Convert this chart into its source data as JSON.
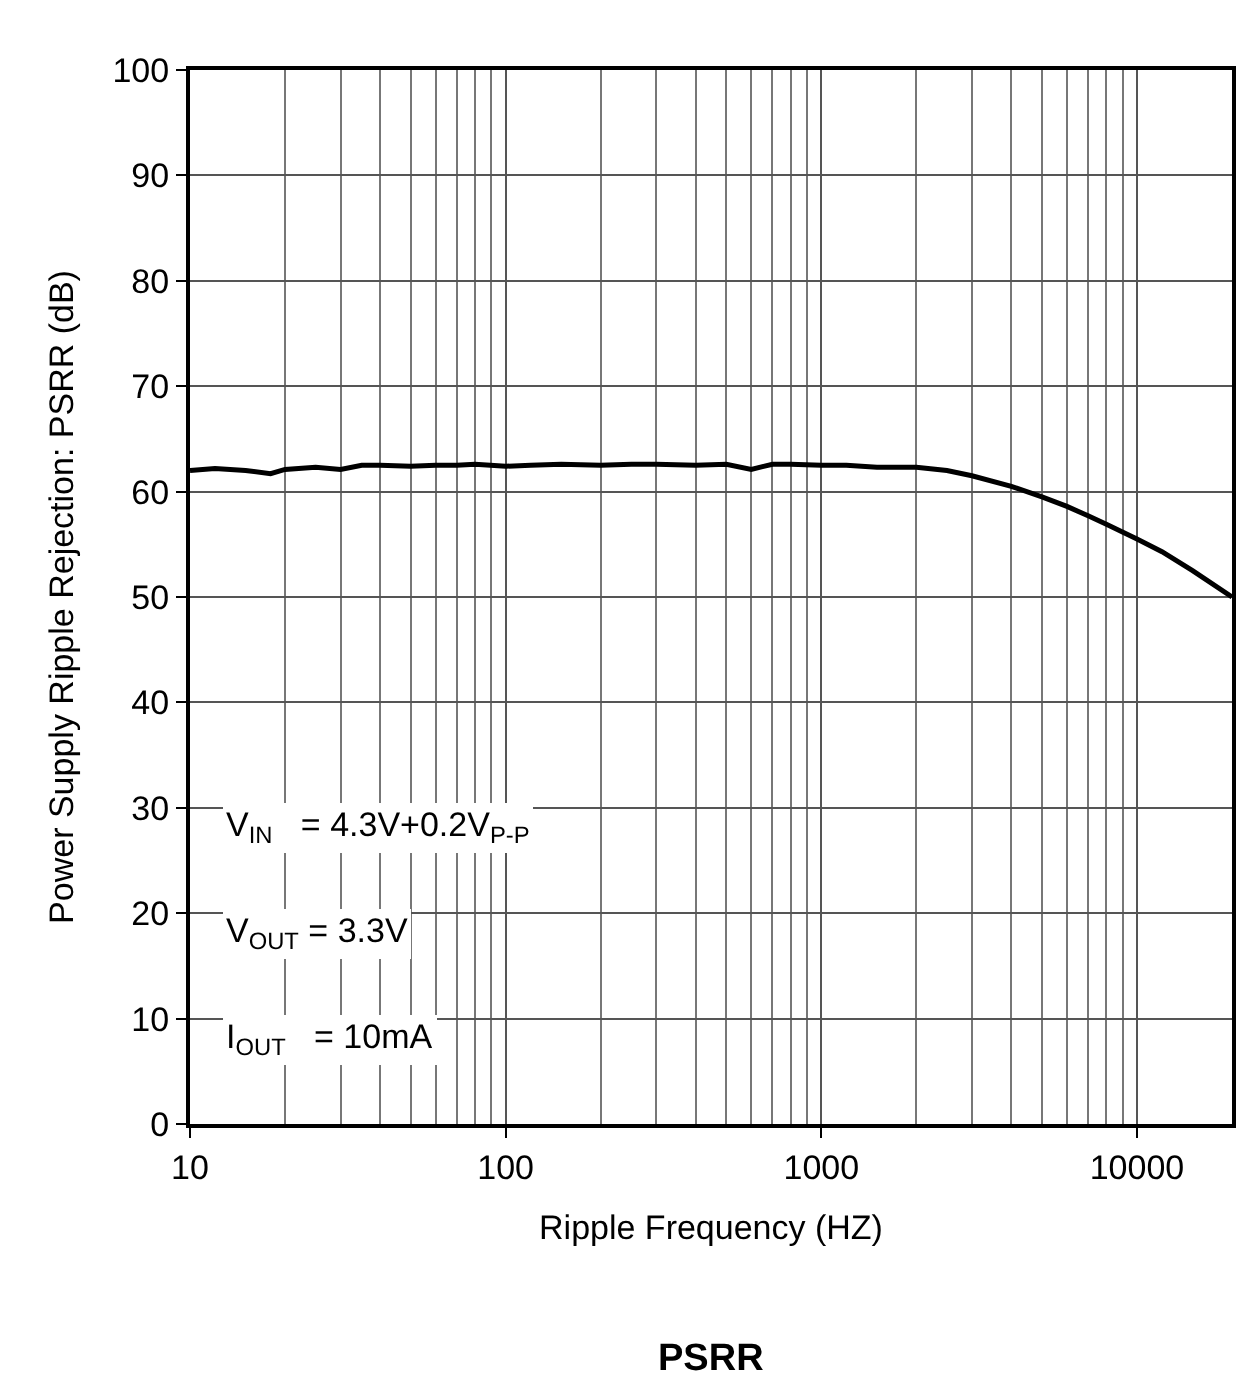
{
  "chart_data": {
    "type": "line",
    "title": "PSRR",
    "xlabel": "Ripple Frequency (HZ)",
    "ylabel": "Power Supply Ripple Rejection: PSRR (dB)",
    "log": "x",
    "xlim": [
      10,
      20000
    ],
    "xticks": [
      10,
      100,
      1000,
      10000
    ],
    "ylim": [
      0,
      100
    ],
    "yticks": [
      0,
      10,
      20,
      30,
      40,
      50,
      60,
      70,
      80,
      90,
      100
    ],
    "grid": true,
    "legend": false,
    "marker": "none",
    "line_style": "solid",
    "series": [
      {
        "color": "#000000",
        "x": [
          10,
          12,
          15,
          18,
          20,
          25,
          30,
          35,
          40,
          50,
          60,
          70,
          80,
          100,
          120,
          150,
          200,
          250,
          300,
          400,
          500,
          600,
          700,
          800,
          1000,
          1200,
          1500,
          2000,
          2500,
          3000,
          4000,
          5000,
          6000,
          7000,
          8000,
          10000,
          12000,
          15000,
          20000
        ],
        "values": [
          62,
          62.2,
          62,
          61.7,
          62.1,
          62.3,
          62.1,
          62.5,
          62.5,
          62.4,
          62.5,
          62.5,
          62.6,
          62.4,
          62.5,
          62.6,
          62.5,
          62.6,
          62.6,
          62.5,
          62.6,
          62.1,
          62.6,
          62.6,
          62.5,
          62.5,
          62.3,
          62.3,
          62,
          61.5,
          60.5,
          59.5,
          58.6,
          57.7,
          56.9,
          55.5,
          54.3,
          52.5,
          50
        ]
      }
    ],
    "annotations": [
      "V$_{IN}$   = 4.3V+0.2V$_{P-P}$",
      "V$_{OUT}$ = 3.3V",
      "I$_{OUT}$   = 10mA"
    ]
  }
}
